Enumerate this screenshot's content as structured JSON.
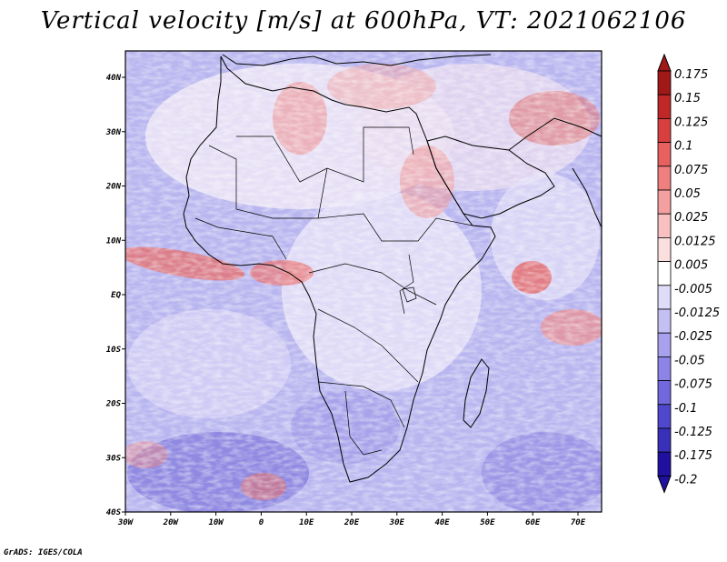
{
  "title": "Vertical velocity [m/s] at 600hPa, VT: 2021062106",
  "credit": "GrADS: IGES/COLA",
  "map": {
    "lon_ticks": [
      "30W",
      "20W",
      "10W",
      "0",
      "10E",
      "20E",
      "30E",
      "40E",
      "50E",
      "60E",
      "70E"
    ],
    "lat_ticks": [
      "40N",
      "30N",
      "20N",
      "10N",
      "EQ",
      "10S",
      "20S",
      "30S",
      "40S"
    ],
    "lon_range": [
      -30,
      75
    ],
    "lat_range": [
      -40,
      44
    ]
  },
  "colorbar": {
    "labels": [
      "0.175",
      "0.15",
      "0.125",
      "0.1",
      "0.075",
      "0.05",
      "0.025",
      "0.0125",
      "0.005",
      "-0.005",
      "-0.0125",
      "-0.025",
      "-0.05",
      "-0.075",
      "-0.1",
      "-0.125",
      "-0.175",
      "-0.2"
    ],
    "colors": [
      "#a01818",
      "#c02828",
      "#d84040",
      "#e86060",
      "#f08080",
      "#f5a0a0",
      "#f8c0c0",
      "#fbdede",
      "#ffffff",
      "#dedcf8",
      "#c4c0f4",
      "#a8a2ee",
      "#8c84e6",
      "#7068dc",
      "#5048cc",
      "#3830b8",
      "#2010a0"
    ]
  }
}
